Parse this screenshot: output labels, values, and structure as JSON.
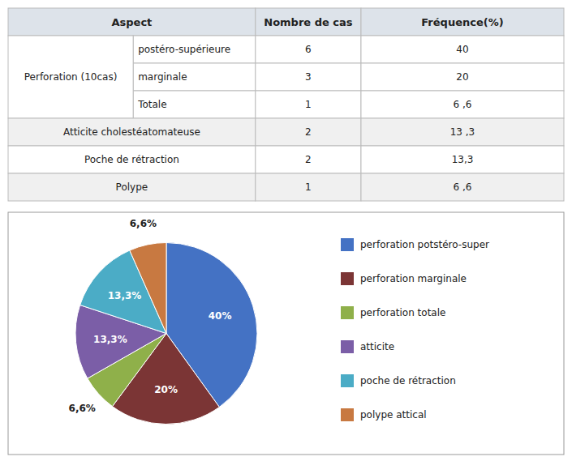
{
  "chart_data": [
    {
      "type": "table",
      "columns": [
        "Aspect",
        "Nombre de cas",
        "Fréquence(%)"
      ],
      "groups": [
        {
          "name": "Perforation (10cas)",
          "rows": [
            [
              "postéro-supérieure",
              "6",
              "40"
            ],
            [
              "marginale",
              "3",
              "20"
            ],
            [
              "Totale",
              "1",
              "6 ,6"
            ]
          ]
        }
      ],
      "rows": [
        [
          "Atticite cholestéatomateuse",
          "2",
          "13 ,3"
        ],
        [
          "Poche de rétraction",
          "2",
          "13,3"
        ],
        [
          "Polype",
          "1",
          "6 ,6"
        ]
      ]
    },
    {
      "type": "pie",
      "categories": [
        "perforation potstéro-super",
        "perforation marginale",
        "perforation totale",
        "atticite",
        "poche de rétraction",
        "polype attical"
      ],
      "values": [
        40,
        20,
        6.6,
        13.3,
        13.3,
        6.6
      ],
      "value_labels": [
        "40%",
        "20%",
        "6,6%",
        "13,3%",
        "13,3%",
        "6,6%"
      ],
      "colors": [
        "#4472C4",
        "#7B3535",
        "#8FB04A",
        "#7B5EA7",
        "#4BACC6",
        "#C87941"
      ],
      "data_labels": true,
      "legend": "right"
    }
  ]
}
